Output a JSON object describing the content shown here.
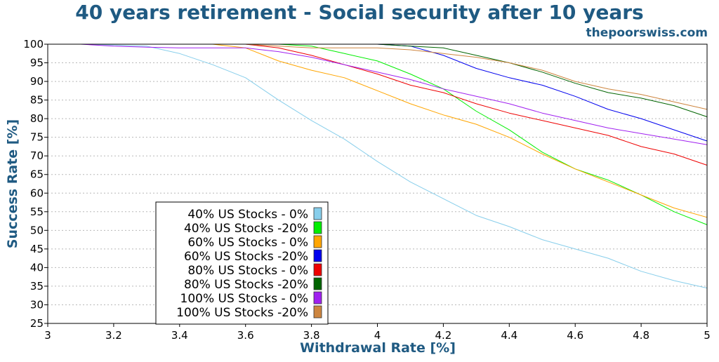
{
  "chart_data": {
    "type": "line",
    "title": "40 years retirement - Social security after 10 years",
    "source": "thepoorswiss.com",
    "xlabel": "Withdrawal Rate [%]",
    "ylabel": "Success Rate [%]",
    "xlim": [
      3,
      5
    ],
    "ylim": [
      25,
      100
    ],
    "xticks": [
      3,
      3.2,
      3.4,
      3.6,
      3.8,
      4,
      4.2,
      4.4,
      4.6,
      4.8,
      5
    ],
    "xtick_labels": [
      "3",
      "3.2",
      "3.4",
      "3.6",
      "3.8",
      "4",
      "4.2",
      "4.4",
      "4.6",
      "4.8",
      "5"
    ],
    "yticks": [
      25,
      30,
      35,
      40,
      45,
      50,
      55,
      60,
      65,
      70,
      75,
      80,
      85,
      90,
      95,
      100
    ],
    "ytick_labels": [
      "25",
      "30",
      "35",
      "40",
      "45",
      "50",
      "55",
      "60",
      "65",
      "70",
      "75",
      "80",
      "85",
      "90",
      "95",
      "100"
    ],
    "grid": "horizontal dotted",
    "legend_position": "bottom-left",
    "x": [
      3.0,
      3.1,
      3.2,
      3.3,
      3.4,
      3.5,
      3.6,
      3.7,
      3.8,
      3.9,
      4.0,
      4.1,
      4.2,
      4.3,
      4.4,
      4.5,
      4.6,
      4.7,
      4.8,
      4.9,
      5.0
    ],
    "series": [
      {
        "name": "40% US Stocks - 0%",
        "color": "#87ceeb",
        "values": [
          100,
          100,
          99.8,
          99.5,
          97.5,
          94.5,
          91,
          85,
          79.5,
          74.5,
          68.5,
          63,
          58.5,
          54,
          51,
          47.5,
          45,
          42.5,
          39,
          36.5,
          34.5
        ]
      },
      {
        "name": "40% US Stocks -20%",
        "color": "#00ee00",
        "values": [
          100,
          100,
          100,
          100,
          100,
          100,
          100,
          100,
          99.5,
          97.5,
          95.5,
          92,
          88,
          82,
          77,
          71,
          66.5,
          63.5,
          59.5,
          55,
          51.5
        ]
      },
      {
        "name": "60% US Stocks - 0%",
        "color": "#ffa500",
        "values": [
          100,
          100,
          100,
          100,
          100,
          100,
          99,
          95.5,
          93,
          91,
          87.5,
          84,
          81,
          78.5,
          75,
          70.5,
          66.5,
          63,
          59.5,
          56,
          53.5
        ]
      },
      {
        "name": "60% US Stocks -20%",
        "color": "#0000ee",
        "values": [
          100,
          100,
          100,
          100,
          100,
          100,
          100,
          100,
          100,
          100,
          100,
          99.5,
          97,
          93.5,
          91,
          89,
          86,
          82.5,
          80,
          77,
          74
        ]
      },
      {
        "name": "80% US Stocks - 0%",
        "color": "#ee0000",
        "values": [
          100,
          100,
          100,
          100,
          100,
          100,
          100,
          99,
          97,
          94.5,
          92,
          89,
          87,
          84,
          81.5,
          79.5,
          77.5,
          75.5,
          72.5,
          70.5,
          67.5
        ]
      },
      {
        "name": "80% US Stocks -20%",
        "color": "#006400",
        "values": [
          100,
          100,
          100,
          100,
          100,
          100,
          100,
          100,
          100,
          100,
          100,
          99.5,
          99,
          97,
          95,
          92.5,
          89.5,
          87,
          85.5,
          83.5,
          80.5
        ]
      },
      {
        "name": "100% US Stocks - 0%",
        "color": "#a020f0",
        "values": [
          100,
          100,
          99.5,
          99.2,
          99,
          99,
          99,
          98,
          96.5,
          94.5,
          92.5,
          90.5,
          88,
          86,
          84,
          81.5,
          79.5,
          77.5,
          76,
          74.5,
          73
        ]
      },
      {
        "name": "100% US Stocks -20%",
        "color": "#cd853f",
        "values": [
          100,
          100,
          100,
          100,
          100,
          100,
          100,
          99.5,
          99,
          99,
          99,
          98.5,
          97.5,
          96.5,
          95,
          93,
          90,
          88,
          86.5,
          84.5,
          82.5
        ]
      }
    ]
  }
}
